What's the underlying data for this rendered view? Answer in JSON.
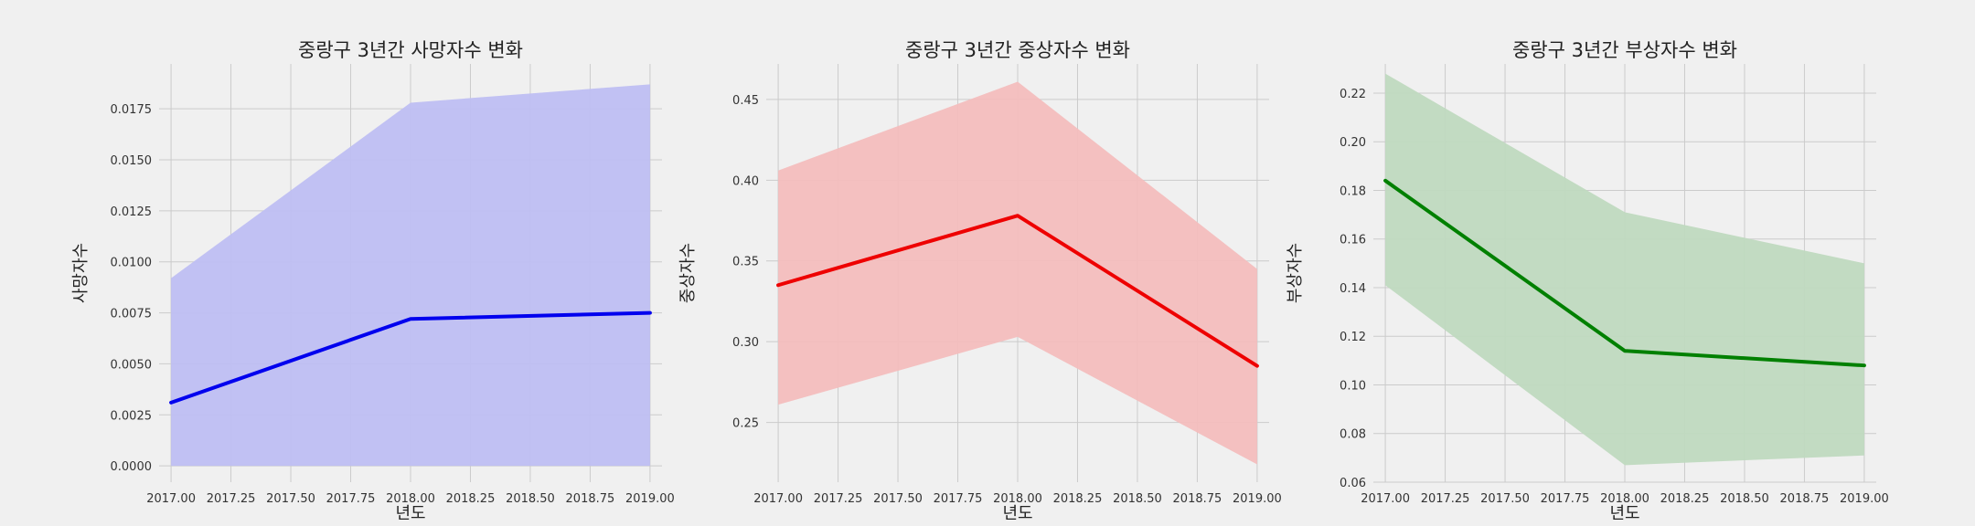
{
  "chart_data": [
    {
      "type": "line",
      "title": "중랑구 3년간 사망자수 변화",
      "xlabel": "년도",
      "ylabel": "사망자수",
      "x": [
        2017,
        2018,
        2019
      ],
      "series": [
        {
          "values": [
            0.0031,
            0.0072,
            0.0075
          ],
          "ci_low": [
            0.0,
            0.0,
            0.0
          ],
          "ci_high": [
            0.0092,
            0.0178,
            0.0187
          ]
        }
      ],
      "xticks": [
        "2017.00",
        "2017.25",
        "2017.50",
        "2017.75",
        "2018.00",
        "2018.25",
        "2018.50",
        "2018.75",
        "2019.00"
      ],
      "yticks": [
        "0.0000",
        "0.0025",
        "0.0050",
        "0.0075",
        "0.0100",
        "0.0125",
        "0.0150",
        "0.0175"
      ],
      "xlim": [
        2016.95,
        2019.05
      ],
      "ylim": [
        -0.0008,
        0.0197
      ],
      "line_color": "#0000ee",
      "fill_color": "#bebef2",
      "grid": true
    },
    {
      "type": "line",
      "title": "중랑구 3년간 중상자수 변화",
      "xlabel": "년도",
      "ylabel": "중상자수",
      "x": [
        2017,
        2018,
        2019
      ],
      "series": [
        {
          "values": [
            0.335,
            0.378,
            0.285
          ],
          "ci_low": [
            0.261,
            0.303,
            0.224
          ],
          "ci_high": [
            0.406,
            0.461,
            0.345
          ]
        }
      ],
      "xticks": [
        "2017.00",
        "2017.25",
        "2017.50",
        "2017.75",
        "2018.00",
        "2018.25",
        "2018.50",
        "2018.75",
        "2019.00"
      ],
      "yticks": [
        "0.25",
        "0.30",
        "0.35",
        "0.40",
        "0.45"
      ],
      "xlim": [
        2016.95,
        2019.05
      ],
      "ylim": [
        0.213,
        0.472
      ],
      "line_color": "#ee0000",
      "fill_color": "#f3bdbd",
      "grid": true
    },
    {
      "type": "line",
      "title": "중랑구 3년간 부상자수 변화",
      "xlabel": "년도",
      "ylabel": "부상자수",
      "x": [
        2017,
        2018,
        2019
      ],
      "series": [
        {
          "values": [
            0.184,
            0.114,
            0.108
          ],
          "ci_low": [
            0.141,
            0.067,
            0.071
          ],
          "ci_high": [
            0.228,
            0.171,
            0.15
          ]
        }
      ],
      "xticks": [
        "2017.00",
        "2017.25",
        "2017.50",
        "2017.75",
        "2018.00",
        "2018.25",
        "2018.50",
        "2018.75",
        "2019.00"
      ],
      "yticks": [
        "0.06",
        "0.08",
        "0.10",
        "0.12",
        "0.14",
        "0.16",
        "0.18",
        "0.20",
        "0.22"
      ],
      "xlim": [
        2016.95,
        2019.05
      ],
      "ylim": [
        0.06,
        0.232
      ],
      "line_color": "#008000",
      "fill_color": "#bfd9bf",
      "grid": true
    }
  ]
}
